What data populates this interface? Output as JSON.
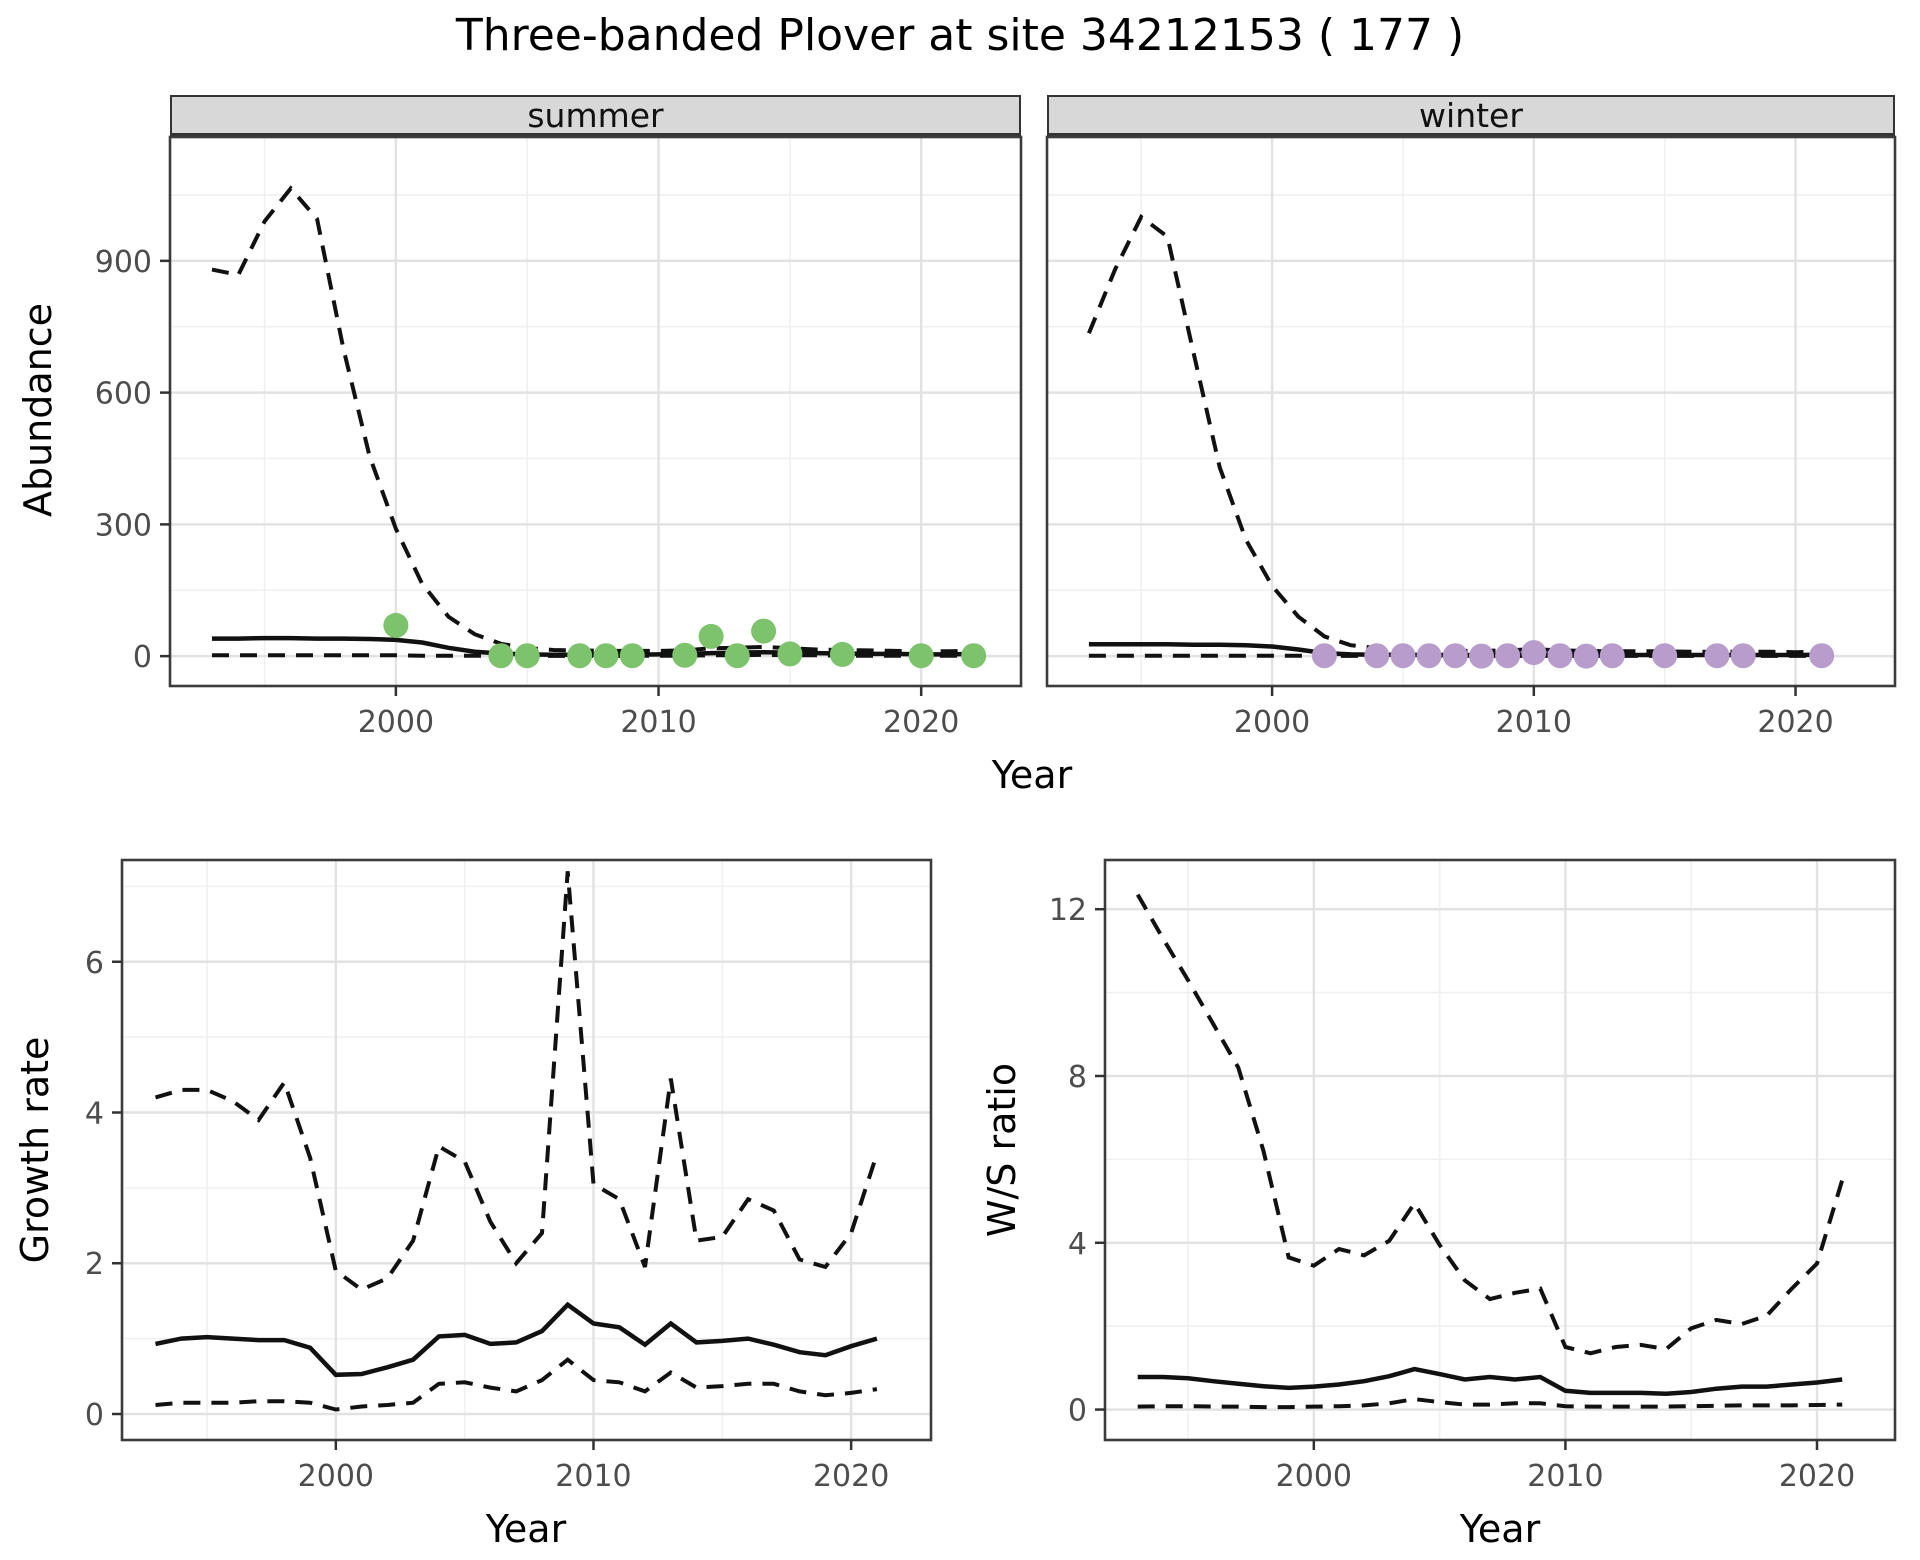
{
  "title": "Three-banded Plover at site 34212153 ( 177 )",
  "axes": {
    "abundance": "Abundance",
    "growth": "Growth rate",
    "ws": "W/S ratio",
    "year_top": "Year",
    "year_bottom_left": "Year",
    "year_bottom_right": "Year"
  },
  "theme": {
    "panel_bg": "#FFFFFF",
    "panel_border": "#3C3C3C",
    "grid_major": "#E2E2E2",
    "grid_minor": "#F0F0F0",
    "line_color": "#111111",
    "tick_color": "#333333",
    "tick_text_color": "#4D4D4D",
    "strip_bg": "#D8D8D8",
    "summer_point_color": "#7CC36B",
    "winter_point_color": "#B89CCC"
  },
  "chart_data": [
    {
      "id": "abundance_summer",
      "type": "line",
      "facet_label": "summer",
      "xlabel": "Year",
      "ylabel": "Abundance",
      "xlim": [
        1991.4,
        2023.8
      ],
      "ylim": [
        -68,
        1182
      ],
      "xticks": [
        2000,
        2010,
        2020
      ],
      "xminor": [
        1995,
        2005,
        2015
      ],
      "yticks": [
        0,
        300,
        600,
        900
      ],
      "yminor": [
        150,
        450,
        750,
        1050
      ],
      "years": [
        1993,
        1994,
        1995,
        1996,
        1997,
        1998,
        1999,
        2000,
        2001,
        2002,
        2003,
        2004,
        2005,
        2006,
        2007,
        2008,
        2009,
        2010,
        2011,
        2012,
        2013,
        2014,
        2015,
        2016,
        2017,
        2018,
        2019,
        2020,
        2021,
        2022
      ],
      "series": [
        {
          "name": "upper_ci",
          "linetype": "dashed",
          "values": [
            880,
            868,
            990,
            1065,
            995,
            700,
            455,
            290,
            165,
            90,
            50,
            28,
            18,
            14,
            13,
            12,
            12,
            12,
            13,
            18,
            19,
            21,
            18,
            15,
            14,
            13,
            12,
            11,
            11,
            12
          ]
        },
        {
          "name": "lower_ci",
          "linetype": "dashed",
          "values": [
            2,
            2,
            2,
            2,
            2,
            2,
            2,
            2,
            1,
            1,
            1,
            0.5,
            0.5,
            0.5,
            0.5,
            0.5,
            0.5,
            1,
            1,
            2,
            2,
            3,
            2,
            2,
            1,
            1,
            1,
            1,
            1,
            1
          ]
        },
        {
          "name": "median",
          "linetype": "solid",
          "values": [
            40,
            40,
            41,
            41,
            40,
            40,
            39,
            37,
            31,
            19,
            10,
            6,
            4,
            3,
            3,
            3,
            3,
            4,
            5,
            7,
            8,
            9,
            8,
            7,
            6,
            5,
            5,
            4,
            4,
            5
          ]
        }
      ],
      "points": {
        "name": "observed_summer_counts",
        "color": "#7CC36B",
        "x": [
          2000,
          2004,
          2005,
          2007,
          2008,
          2009,
          2011,
          2012,
          2013,
          2014,
          2015,
          2017,
          2020,
          2022
        ],
        "y": [
          70,
          1,
          1,
          1,
          1,
          1,
          2,
          45,
          1,
          57,
          5,
          4,
          1,
          1
        ]
      }
    },
    {
      "id": "abundance_winter",
      "type": "line",
      "facet_label": "winter",
      "xlabel": "Year",
      "ylabel": "Abundance",
      "xlim": [
        1991.4,
        2023.8
      ],
      "ylim": [
        -68,
        1182
      ],
      "xticks": [
        2000,
        2010,
        2020
      ],
      "xminor": [
        1995,
        2005,
        2015
      ],
      "yticks": [
        0,
        300,
        600,
        900
      ],
      "yminor": [
        150,
        450,
        750,
        1050
      ],
      "years": [
        1993,
        1994,
        1995,
        1996,
        1997,
        1998,
        1999,
        2000,
        2001,
        2002,
        2003,
        2004,
        2005,
        2006,
        2007,
        2008,
        2009,
        2010,
        2011,
        2012,
        2013,
        2014,
        2015,
        2016,
        2017,
        2018,
        2019,
        2020,
        2021
      ],
      "series": [
        {
          "name": "upper_ci",
          "linetype": "dashed",
          "values": [
            735,
            880,
            1000,
            955,
            690,
            430,
            265,
            160,
            90,
            45,
            25,
            18,
            15,
            13,
            12,
            12,
            13,
            16,
            13,
            12,
            11,
            11,
            11,
            10,
            10,
            10,
            10,
            9,
            10
          ]
        },
        {
          "name": "lower_ci",
          "linetype": "dashed",
          "values": [
            1,
            1,
            1,
            1,
            1,
            1,
            1,
            1,
            1,
            0.5,
            0.5,
            0.5,
            0.5,
            0.5,
            0.5,
            0.5,
            0.5,
            0.5,
            0.5,
            0.5,
            0.5,
            0.5,
            0.5,
            0.5,
            0.5,
            0.5,
            0.5,
            0.5,
            0.5
          ]
        },
        {
          "name": "median",
          "linetype": "solid",
          "values": [
            27,
            27,
            27,
            27,
            26,
            26,
            25,
            22,
            15,
            7,
            4,
            3,
            3,
            2.5,
            2.5,
            2.5,
            3,
            4,
            3,
            2.5,
            2.5,
            2.5,
            2.5,
            2.5,
            2.5,
            2.5,
            2.5,
            2.5,
            3
          ]
        }
      ],
      "points": {
        "name": "observed_winter_counts",
        "color": "#B89CCC",
        "x": [
          2002,
          2004,
          2005,
          2006,
          2007,
          2008,
          2009,
          2010,
          2011,
          2012,
          2013,
          2015,
          2017,
          2018,
          2021
        ],
        "y": [
          1,
          1,
          1,
          1,
          1,
          0,
          1,
          8,
          1,
          0,
          1,
          1,
          1,
          1,
          1
        ]
      }
    },
    {
      "id": "growth_rate",
      "type": "line",
      "facet_label": "",
      "xlabel": "Year",
      "ylabel": "Growth rate",
      "xlim": [
        1991.7,
        2023.1
      ],
      "ylim": [
        -0.345,
        7.35
      ],
      "xticks": [
        2000,
        2010,
        2020
      ],
      "xminor": [
        1995,
        2005,
        2015
      ],
      "yticks": [
        0,
        2,
        4,
        6
      ],
      "yminor": [
        1,
        3,
        5,
        7
      ],
      "years": [
        1993,
        1994,
        1995,
        1996,
        1997,
        1998,
        1999,
        2000,
        2001,
        2002,
        2003,
        2004,
        2005,
        2006,
        2007,
        2008,
        2009,
        2010,
        2011,
        2012,
        2013,
        2014,
        2015,
        2016,
        2017,
        2018,
        2019,
        2020,
        2021
      ],
      "series": [
        {
          "name": "upper_ci",
          "linetype": "dashed",
          "values": [
            4.2,
            4.3,
            4.3,
            4.15,
            3.9,
            4.4,
            3.4,
            1.9,
            1.65,
            1.8,
            2.3,
            3.55,
            3.35,
            2.55,
            2.0,
            2.4,
            7.2,
            3.05,
            2.85,
            1.95,
            4.45,
            2.3,
            2.35,
            2.85,
            2.7,
            2.05,
            1.95,
            2.4,
            3.45
          ]
        },
        {
          "name": "lower_ci",
          "linetype": "dashed",
          "values": [
            0.12,
            0.15,
            0.15,
            0.15,
            0.17,
            0.17,
            0.15,
            0.06,
            0.1,
            0.12,
            0.15,
            0.4,
            0.42,
            0.35,
            0.3,
            0.45,
            0.72,
            0.45,
            0.42,
            0.3,
            0.55,
            0.35,
            0.37,
            0.4,
            0.4,
            0.3,
            0.25,
            0.28,
            0.33
          ]
        },
        {
          "name": "median",
          "linetype": "solid",
          "values": [
            0.93,
            1.0,
            1.02,
            1.0,
            0.98,
            0.98,
            0.88,
            0.52,
            0.53,
            0.62,
            0.72,
            1.03,
            1.05,
            0.93,
            0.95,
            1.1,
            1.45,
            1.2,
            1.15,
            0.92,
            1.2,
            0.95,
            0.97,
            1.0,
            0.92,
            0.82,
            0.78,
            0.9,
            1.0
          ]
        }
      ]
    },
    {
      "id": "ws_ratio",
      "type": "line",
      "facet_label": "",
      "xlabel": "Year",
      "ylabel": "W/S ratio",
      "xlim": [
        1991.7,
        2023.1
      ],
      "ylim": [
        -0.73,
        13.18
      ],
      "xticks": [
        2000,
        2010,
        2020
      ],
      "xminor": [
        1995,
        2005,
        2015
      ],
      "yticks": [
        0,
        4,
        8,
        12
      ],
      "yminor": [
        2,
        6,
        10
      ],
      "years": [
        1993,
        1994,
        1995,
        1996,
        1997,
        1998,
        1999,
        2000,
        2001,
        2002,
        2003,
        2004,
        2005,
        2006,
        2007,
        2008,
        2009,
        2010,
        2011,
        2012,
        2013,
        2014,
        2015,
        2016,
        2017,
        2018,
        2019,
        2020,
        2021
      ],
      "series": [
        {
          "name": "upper_ci",
          "linetype": "dashed",
          "values": [
            12.35,
            11.3,
            10.3,
            9.25,
            8.2,
            6.2,
            3.65,
            3.45,
            3.85,
            3.7,
            4.05,
            4.95,
            3.95,
            3.1,
            2.65,
            2.8,
            2.9,
            1.5,
            1.35,
            1.5,
            1.55,
            1.45,
            1.95,
            2.15,
            2.05,
            2.25,
            2.9,
            3.5,
            5.5
          ]
        },
        {
          "name": "lower_ci",
          "linetype": "dashed",
          "values": [
            0.07,
            0.08,
            0.08,
            0.07,
            0.07,
            0.06,
            0.06,
            0.07,
            0.08,
            0.1,
            0.15,
            0.25,
            0.18,
            0.12,
            0.12,
            0.15,
            0.15,
            0.08,
            0.07,
            0.07,
            0.07,
            0.07,
            0.08,
            0.09,
            0.1,
            0.1,
            0.1,
            0.11,
            0.12
          ]
        },
        {
          "name": "median",
          "linetype": "solid",
          "values": [
            0.78,
            0.78,
            0.75,
            0.68,
            0.62,
            0.56,
            0.52,
            0.55,
            0.6,
            0.68,
            0.8,
            0.97,
            0.85,
            0.72,
            0.78,
            0.72,
            0.78,
            0.45,
            0.4,
            0.4,
            0.4,
            0.38,
            0.42,
            0.5,
            0.55,
            0.55,
            0.6,
            0.65,
            0.72
          ]
        }
      ]
    }
  ]
}
